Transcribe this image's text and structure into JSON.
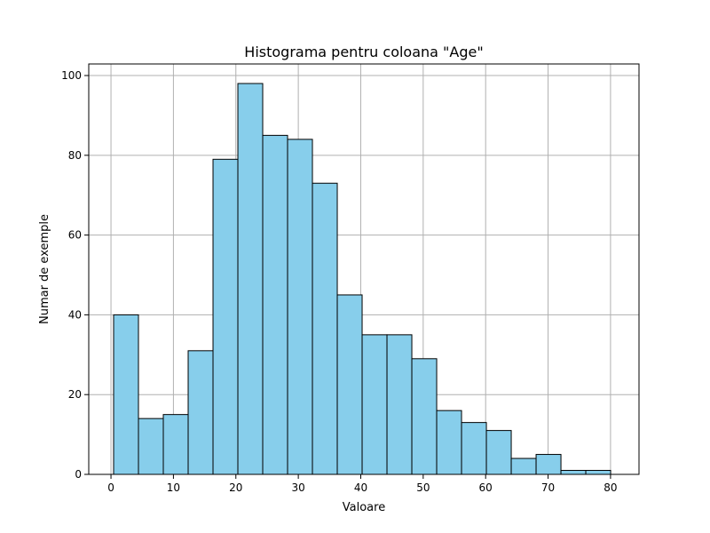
{
  "chart_data": {
    "type": "bar",
    "title": "Histograma pentru coloana \"Age\"",
    "xlabel": "Valoare",
    "ylabel": "Numar de exemple",
    "xlim": [
      -3.56,
      84.56
    ],
    "ylim": [
      0,
      102.9
    ],
    "xticks": [
      0,
      10,
      20,
      30,
      40,
      50,
      60,
      70,
      80
    ],
    "yticks": [
      0,
      20,
      40,
      60,
      80,
      100
    ],
    "grid": true,
    "bar_color": "#87ceeb",
    "edge_color": "#000000",
    "bins": [
      {
        "start": 0.42,
        "end": 4.4,
        "count": 40
      },
      {
        "start": 4.4,
        "end": 8.38,
        "count": 14
      },
      {
        "start": 8.38,
        "end": 12.36,
        "count": 15
      },
      {
        "start": 12.36,
        "end": 16.34,
        "count": 31
      },
      {
        "start": 16.34,
        "end": 20.32,
        "count": 79
      },
      {
        "start": 20.32,
        "end": 24.3,
        "count": 98
      },
      {
        "start": 24.3,
        "end": 28.28,
        "count": 85
      },
      {
        "start": 28.28,
        "end": 32.26,
        "count": 84
      },
      {
        "start": 32.26,
        "end": 36.24,
        "count": 73
      },
      {
        "start": 36.24,
        "end": 40.22,
        "count": 45
      },
      {
        "start": 40.22,
        "end": 44.2,
        "count": 35
      },
      {
        "start": 44.2,
        "end": 48.18,
        "count": 35
      },
      {
        "start": 48.18,
        "end": 52.16,
        "count": 29
      },
      {
        "start": 52.16,
        "end": 56.14,
        "count": 16
      },
      {
        "start": 56.14,
        "end": 60.12,
        "count": 13
      },
      {
        "start": 60.12,
        "end": 64.1,
        "count": 11
      },
      {
        "start": 64.1,
        "end": 68.08,
        "count": 4
      },
      {
        "start": 68.08,
        "end": 72.06,
        "count": 5
      },
      {
        "start": 72.06,
        "end": 76.04,
        "count": 1
      },
      {
        "start": 76.04,
        "end": 80.02,
        "count": 1
      }
    ]
  }
}
